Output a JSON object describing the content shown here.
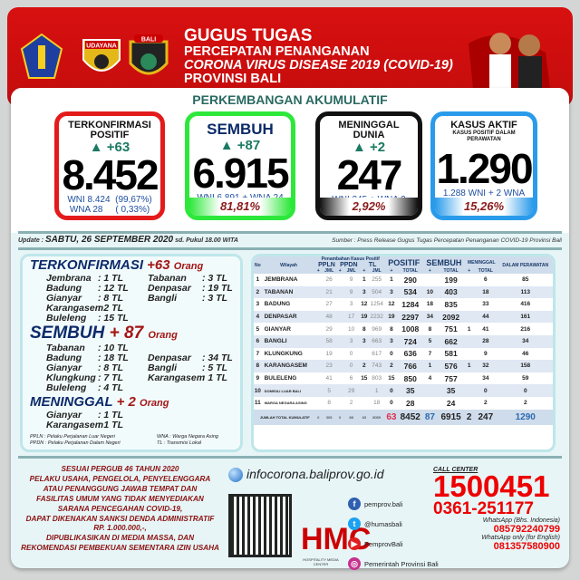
{
  "header": {
    "line1": "GUGUS TUGAS",
    "line2": "PERCEPATAN PENANGANAN",
    "line3": "CORONA VIRUS DISEASE 2019 (COVID-19)",
    "line4": "PROVINSI BALI",
    "logo2_text": "UDAYANA",
    "logo3_text": "BALI"
  },
  "subtitle": "PERKEMBANGAN AKUMULATIF",
  "cards": [
    {
      "label": "TERKONFIRMASI POSITIF",
      "inc": "▲ +63",
      "value": "8.452",
      "d1": "WNI 8.424  (99,67%)",
      "d2": "WNA 28     ( 0,33%)",
      "pct": "",
      "color": "#e31b1b"
    },
    {
      "label": "SEMBUH",
      "inc": "▲ +87",
      "value": "6.915",
      "d1": "WNI 6.891 + WNA 24",
      "d2": "",
      "pct": "81,81%",
      "color": "#2de83a"
    },
    {
      "label": "MENINGGAL DUNIA",
      "inc": "▲ +2",
      "value": "247",
      "d1": "WNI 245 + WNA 2",
      "d2": "",
      "pct": "2,92%",
      "color": "#111111"
    },
    {
      "label": "KASUS AKTIF",
      "sub": "KASUS POSITIF DALAM PERAWATAN",
      "value": "1.290",
      "d1": "1.288 WNI + 2 WNA",
      "d2": "",
      "pct": "15,26%",
      "color": "#2a9bea"
    }
  ],
  "update": {
    "prefix": "Update  :",
    "date": "SABTU, 26 SEPTEMBER 2020",
    "suffix": "sd. Pukul 18.00 WITA",
    "source": "Sumber :  Press Release Gugus Tugas Percepatan Penanganan COVID-19 Provinsi Bali"
  },
  "summary": {
    "terkonfirmasi": {
      "title": "TERKONFIRMASI",
      "num": "+63",
      "unit": "Orang",
      "rows": [
        [
          "Jembrana",
          ": 1 TL",
          "Tabanan",
          ": 3 TL"
        ],
        [
          "Badung",
          ": 12 TL",
          "Denpasar",
          ": 19 TL"
        ],
        [
          "Gianyar",
          ": 8 TL",
          "Bangli",
          ": 3 TL"
        ],
        [
          "Karangasem",
          ": 2 TL",
          "",
          ""
        ],
        [
          "Buleleng",
          ": 15 TL",
          "",
          ""
        ]
      ]
    },
    "sembuh": {
      "title": "SEMBUH",
      "num": "+ 87",
      "unit": "Orang",
      "rows": [
        [
          "Tabanan",
          ": 10 TL",
          "",
          ""
        ],
        [
          "Badung",
          ": 18 TL",
          "Denpasar",
          ": 34 TL"
        ],
        [
          "Gianyar",
          ": 8 TL",
          "Bangli",
          ": 5 TL"
        ],
        [
          "Klungkung",
          ": 7 TL",
          "Karangasem",
          ": 1 TL"
        ],
        [
          "Buleleng",
          ": 4 TL",
          "",
          ""
        ]
      ]
    },
    "meninggal": {
      "title": "MENINGGAL",
      "num": "+ 2",
      "unit": "Orang",
      "rows": [
        [
          "Gianyar",
          ": 1 TL",
          "",
          ""
        ],
        [
          "Karangasem",
          ": 1 TL",
          "",
          ""
        ]
      ]
    },
    "legend": [
      "PPLN  :  Pelaku Perjalanan Luar Negeri",
      "PPDN  :  Pelaku Perjalanan Dalam Negeri",
      "WNA  :  Warga Negara Asing",
      "TL  :  Transmisi Lokal"
    ]
  },
  "table": {
    "headers": {
      "no": "No",
      "wilayah": "Wilayah",
      "penambahan": "Penambahan Kasus Positif",
      "ppln": "PPLN",
      "ppdn": "PPDN",
      "tl": "TL",
      "positif": "POSITIF",
      "sembuh": "SEMBUH",
      "meninggal": "MENINGGAL",
      "dalam": "DALAM PERAWATAN",
      "plus": "+",
      "jml": "JML",
      "total": "TOTAL"
    },
    "rows": [
      [
        "1",
        "JEMBRANA",
        "",
        "26",
        "",
        "9",
        "1",
        "255",
        "1",
        "290",
        "",
        "199",
        "",
        "6",
        "85"
      ],
      [
        "2",
        "TABANAN",
        "",
        "21",
        "",
        "9",
        "3",
        "504",
        "3",
        "534",
        "10",
        "403",
        "",
        "18",
        "113"
      ],
      [
        "3",
        "BADUNG",
        "",
        "27",
        "",
        "3",
        "12",
        "1254",
        "12",
        "1284",
        "18",
        "835",
        "",
        "33",
        "416"
      ],
      [
        "4",
        "DENPASAR",
        "",
        "48",
        "",
        "17",
        "19",
        "2232",
        "19",
        "2297",
        "34",
        "2092",
        "",
        "44",
        "161"
      ],
      [
        "5",
        "GIANYAR",
        "",
        "29",
        "",
        "10",
        "8",
        "969",
        "8",
        "1008",
        "8",
        "751",
        "1",
        "41",
        "216"
      ],
      [
        "6",
        "BANGLI",
        "",
        "58",
        "",
        "3",
        "3",
        "663",
        "3",
        "724",
        "5",
        "662",
        "",
        "28",
        "34"
      ],
      [
        "7",
        "KLUNGKUNG",
        "",
        "19",
        "",
        "0",
        "",
        "617",
        "0",
        "636",
        "7",
        "581",
        "",
        "9",
        "46"
      ],
      [
        "8",
        "KARANGASEM",
        "",
        "23",
        "",
        "0",
        "2",
        "743",
        "2",
        "766",
        "1",
        "576",
        "1",
        "32",
        "158"
      ],
      [
        "9",
        "BULELENG",
        "",
        "41",
        "",
        "6",
        "15",
        "803",
        "15",
        "850",
        "4",
        "757",
        "",
        "34",
        "59"
      ],
      [
        "10",
        "DOMISILI LUAR BALI",
        "",
        "5",
        "",
        "29",
        "",
        "1",
        "0",
        "35",
        "",
        "35",
        "",
        "0",
        "0"
      ],
      [
        "11",
        "WARGA NEGARA ASING",
        "",
        "8",
        "",
        "2",
        "",
        "18",
        "0",
        "28",
        "",
        "24",
        "",
        "2",
        "2"
      ]
    ],
    "total": [
      "JUMLAH TOTAL KUMULATIF",
      "0",
      "305",
      "0",
      "88",
      "63",
      "8059",
      "63",
      "8452",
      "87",
      "6915",
      "2",
      "247",
      "1290"
    ]
  },
  "footer": {
    "notice": [
      "SESUAI PERGUB 46 TAHUN 2020",
      "PELAKU USAHA, PENGELOLA, PENYELENGGARA",
      "ATAU PENANGGUNG JAWAB TEMPAT DAN",
      "FASILITAS UMUM YANG TIDAK MENYEDIAKAN",
      "SARANA PENCEGAHAN COVID-19,",
      "DAPAT DIKENAKAN SANKSI DENDA ADMINISTRATIF",
      "RP. 1.000.000,-,",
      "DIPUBLIKASIKAN DI MEDIA MASSA, DAN",
      "REKOMENDASI PEMBEKUAN SEMENTARA IZIN USAHA"
    ],
    "website": "infocorona.baliprov.go.id",
    "hmc": "HOSPITALITY MEDIA CENTER",
    "social": [
      {
        "icon": "facebook-icon",
        "text": "pemprov.bali",
        "color": "#2f5fb0",
        "g": "f"
      },
      {
        "icon": "twitter-icon",
        "text": "@humasbali",
        "color": "#1da1f2",
        "g": "t"
      },
      {
        "icon": "youtube-icon",
        "text": "PemprovBali",
        "color": "#e02020",
        "g": "▶"
      },
      {
        "icon": "instagram-icon",
        "text": "Pemerintah Provinsi Bali",
        "color": "#c7308f",
        "g": "◎"
      }
    ],
    "call_label": "CALL CENTER",
    "call1": "1500451",
    "call2": "0361-251177",
    "wa1_label": "WhatsApp (Bhs. Indonesia)",
    "wa1": "085792240799",
    "wa2_label": "WhatsApp only (for English)",
    "wa2": "081357580900"
  }
}
